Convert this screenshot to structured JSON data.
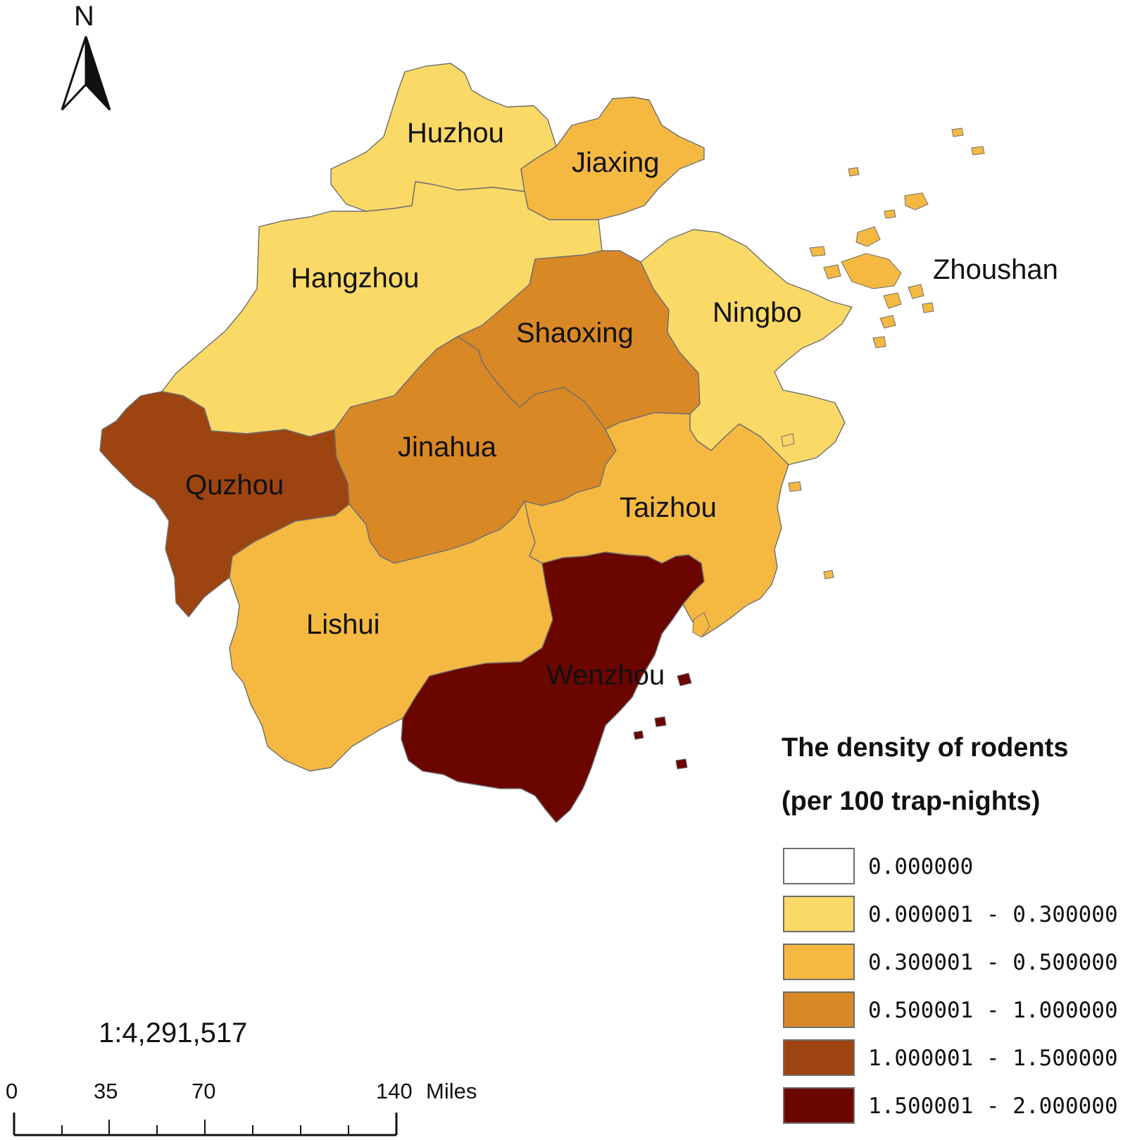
{
  "north_arrow": {
    "letter": "N",
    "icon": "north-arrow-icon"
  },
  "regions": [
    {
      "id": "huzhou",
      "name": "Huzhou",
      "class": "0.000001 - 0.300000"
    },
    {
      "id": "jiaxing",
      "name": "Jiaxing",
      "class": "0.300001 - 0.500000"
    },
    {
      "id": "hangzhou",
      "name": "Hangzhou",
      "class": "0.000001 - 0.300000"
    },
    {
      "id": "shaoxing",
      "name": "Shaoxing",
      "class": "0.500001 - 1.000000"
    },
    {
      "id": "ningbo",
      "name": "Ningbo",
      "class": "0.000001 - 0.300000"
    },
    {
      "id": "zhoushan",
      "name": "Zhoushan",
      "class": "0.300001 - 0.500000"
    },
    {
      "id": "quzhou",
      "name": "Quzhou",
      "class": "1.000001 - 1.500000"
    },
    {
      "id": "jinahua",
      "name": "Jinahua",
      "class": "0.500001 - 1.000000"
    },
    {
      "id": "taizhou",
      "name": "Taizhou",
      "class": "0.300001 - 0.500000"
    },
    {
      "id": "lishui",
      "name": "Lishui",
      "class": "0.300001 - 0.500000"
    },
    {
      "id": "wenzhou",
      "name": "Wenzhou",
      "class": "1.500001 - 2.000000"
    }
  ],
  "legend": {
    "title_line1": "The density of rodents",
    "title_line2": "(per 100 trap-nights)",
    "classes": [
      {
        "label": "0.000000",
        "color": "#ffffff"
      },
      {
        "label": "0.000001 - 0.300000",
        "color": "#fad966"
      },
      {
        "label": "0.300001 - 0.500000",
        "color": "#f5b942"
      },
      {
        "label": "0.500001 - 1.000000",
        "color": "#d98826"
      },
      {
        "label": "1.000001 - 1.500000",
        "color": "#9e4410"
      },
      {
        "label": "1.500001 - 2.000000",
        "color": "#6b0500"
      }
    ]
  },
  "scale": {
    "ratio": "1:4,291,517",
    "ticks": [
      "0",
      "35",
      "70",
      "140"
    ],
    "unit": "Miles"
  }
}
